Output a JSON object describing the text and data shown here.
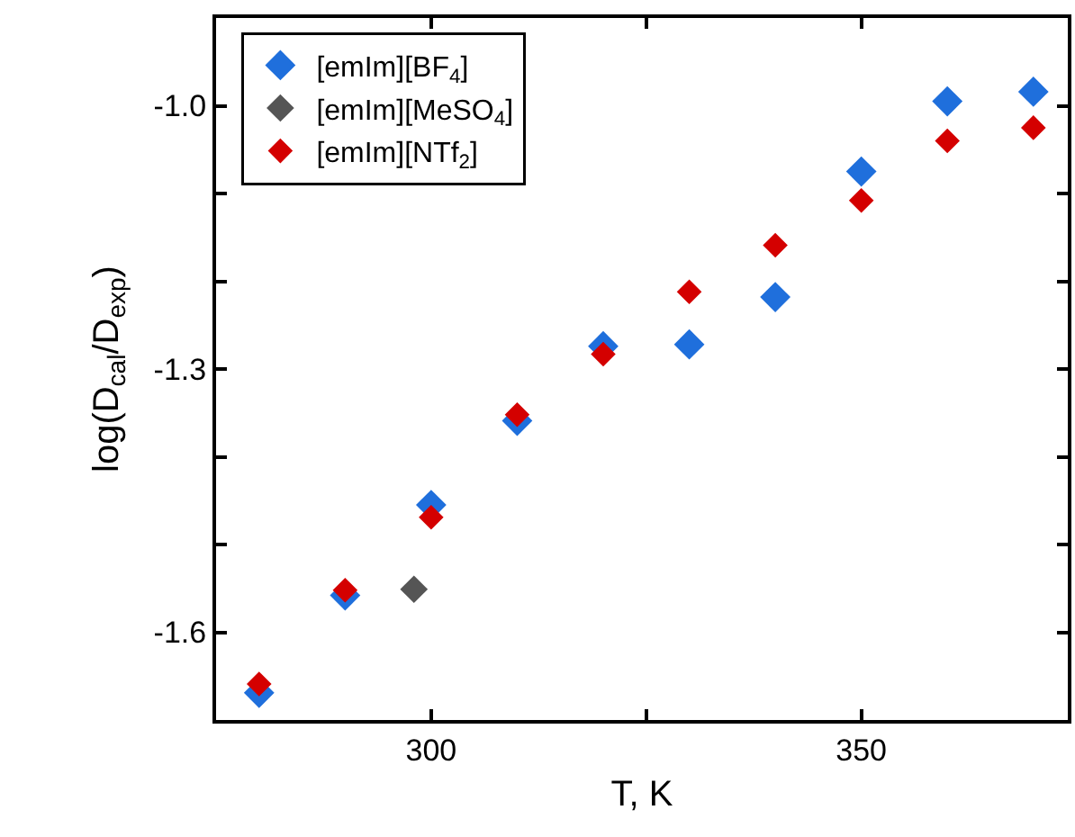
{
  "chart_data": {
    "type": "scatter",
    "xlabel": "T, K",
    "ylabel": "log(D$_{cal}$/D$_{exp}$)",
    "marker": "diamond",
    "legend": "top left",
    "grid": false,
    "xlim": [
      275,
      374
    ],
    "xticks": [
      300,
      {
        "value": 325,
        "label": null
      },
      350
    ],
    "ylim": [
      -1.7,
      -0.9
    ],
    "yticks": [
      {
        "value": -1.5,
        "label": null
      },
      {
        "value": -1.4,
        "label": null
      },
      {
        "value": -1.2,
        "label": null
      },
      {
        "value": -1.1,
        "label": null
      },
      -1.6,
      -1.3,
      {
        "value": -1.0,
        "label": "-1.0"
      }
    ],
    "series": [
      {
        "name": "[emIm][BF$_{4}$]",
        "color": "#1f6fdc",
        "x": [
          280,
          290,
          300,
          310,
          320,
          330,
          340,
          350,
          360,
          370
        ],
        "values": [
          -1.669,
          -1.558,
          -1.455,
          -1.359,
          -1.274,
          -1.272,
          -1.218,
          -1.075,
          -0.995,
          -0.984
        ]
      },
      {
        "name": "[emIm][MeSO$_{4}$]",
        "color": "#555555",
        "x": [
          298
        ],
        "values": [
          -1.551
        ]
      },
      {
        "name": "[emIm][NTf$_{2}$]",
        "color": "#d40000",
        "x": [
          280,
          290,
          300,
          310,
          320,
          330,
          340,
          350,
          360,
          370
        ],
        "values": [
          -1.659,
          -1.552,
          -1.469,
          -1.352,
          -1.283,
          -1.212,
          -1.159,
          -1.108,
          -1.04,
          -1.025
        ]
      }
    ]
  }
}
